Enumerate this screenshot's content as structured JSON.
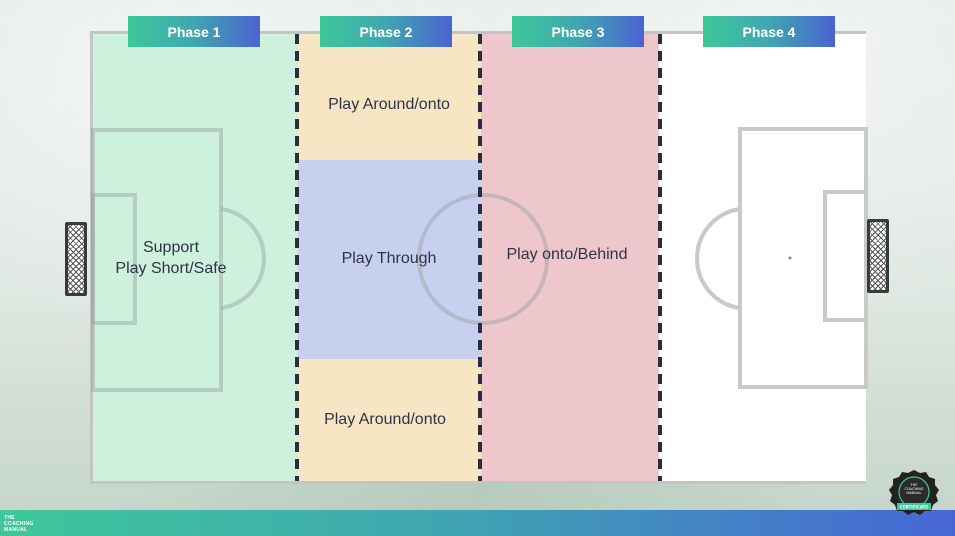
{
  "phases": [
    "Phase 1",
    "Phase 2",
    "Phase 3",
    "Phase 4"
  ],
  "zones": {
    "phase1": [
      "Support",
      "Play Short/Safe"
    ],
    "phase2_top": "Play Around/onto",
    "phase2_middle": "Play Through",
    "phase2_bottom": "Play Around/onto",
    "phase3": "Play onto/Behind"
  },
  "brand": {
    "line1": "THE",
    "line2": "COACHING",
    "line3": "MANUAL"
  },
  "badge": {
    "top_line1": "THE",
    "top_line2": "COACHING",
    "top_line3": "MANUAL",
    "ribbon": "CERTIFICATE"
  },
  "colors": {
    "phase1": "#cdf1dc",
    "phase2": "#f6e6c3",
    "phase2_middle": "#c8d0f0",
    "phase3": "#edc7cc",
    "phase4": "#ffffff",
    "accent_start": "#3ec89a",
    "accent_end": "#4a63d3"
  }
}
